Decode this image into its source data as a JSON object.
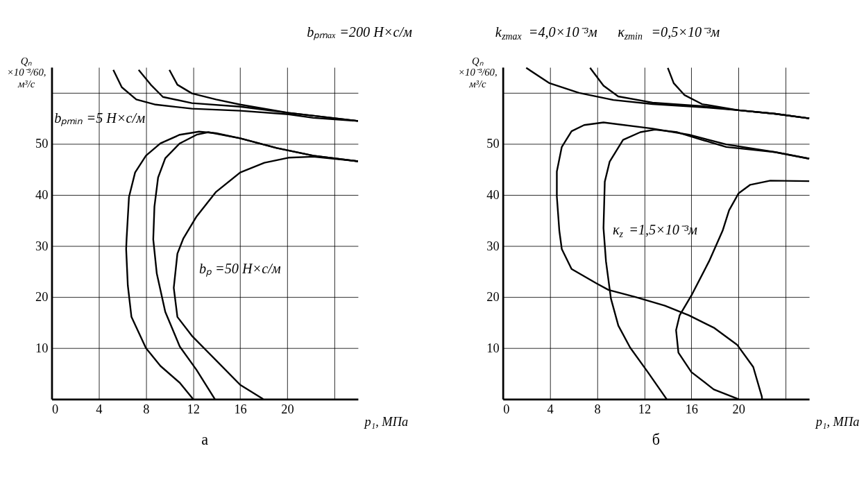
{
  "chart_data": [
    {
      "type": "line",
      "title": "а",
      "xlabel": "p₁, МПа",
      "ylabel": "Qₙ ×10⁻³/60, м³/с",
      "xlim": [
        0,
        26
      ],
      "ylim": [
        0,
        65
      ],
      "xticks": [
        0,
        4,
        8,
        12,
        16,
        20,
        {
          "value": 24,
          "label": null
        }
      ],
      "yticks": [
        10,
        20,
        30,
        40,
        50,
        {
          "value": 60,
          "label": null
        }
      ],
      "grid": true,
      "series": [
        {
          "color": "#000000",
          "x": [
            5.23,
            5.95,
            7.18,
            8.82,
            11.9,
            16.0,
            20.1,
            22.2,
            26.0
          ],
          "values": [
            64.5,
            61.1,
            58.7,
            57.7,
            56.9,
            56.5,
            55.8,
            55.1,
            54.5
          ]
        },
        {
          "color": "#000000",
          "x": [
            7.38,
            8.41,
            9.44,
            11.9,
            16.0,
            20.1,
            26.0
          ],
          "values": [
            64.5,
            61.6,
            59.2,
            58.0,
            57.3,
            56.1,
            54.5
          ]
        },
        {
          "color": "#000000",
          "x": [
            9.99,
            10.67,
            11.9,
            13.95,
            16.0,
            20.1,
            26.0
          ],
          "values": [
            64.5,
            61.6,
            59.9,
            58.7,
            57.7,
            56.1,
            54.5
          ]
        },
        {
          "color": "#000000",
          "x": [
            12.0,
            10.87,
            9.23,
            8.0,
            6.77,
            6.46,
            6.32,
            6.36,
            6.56,
            7.08,
            8.0,
            9.23,
            10.87,
            12.5,
            13.95,
            16.0,
            19.1,
            22.2,
            26.0
          ],
          "values": [
            0,
            3.2,
            6.5,
            10.0,
            16.1,
            22.3,
            29.4,
            31.5,
            39.6,
            44.4,
            47.7,
            50.1,
            51.8,
            52.4,
            52.1,
            51.1,
            49.2,
            47.7,
            46.6
          ]
        },
        {
          "color": "#000000",
          "x": [
            13.85,
            12.3,
            10.87,
            9.64,
            8.92,
            8.62,
            8.72,
            9.03,
            9.64,
            10.87,
            12.3,
            13.3,
            16.0,
            19.1,
            22.2,
            26.0
          ],
          "values": [
            0,
            5.7,
            10.3,
            17.1,
            24.6,
            31.3,
            37.7,
            43.4,
            47.2,
            50.1,
            51.8,
            52.3,
            51.1,
            49.2,
            47.7,
            46.6
          ]
        },
        {
          "color": "#000000",
          "x": [
            17.95,
            16.0,
            13.95,
            11.9,
            10.67,
            10.36,
            10.67,
            11.18,
            12.3,
            13.95,
            16.0,
            18.05,
            20.1,
            22.2,
            26.0
          ],
          "values": [
            0,
            2.8,
            7.6,
            12.4,
            16.1,
            21.8,
            28.5,
            31.5,
            35.8,
            40.6,
            44.4,
            46.3,
            47.3,
            47.5,
            46.6
          ]
        }
      ],
      "annotations": [
        "bₚₘₐₓ =200 Н×с/м",
        "bₚₘᵢₙ =5 Н×с/м",
        "bₚ =50 Н×с/м"
      ]
    },
    {
      "type": "line",
      "title": "б",
      "xlabel": "p₁, МПа",
      "ylabel": "Qₙ ×10⁻³/60, м³/с",
      "xlim": [
        0,
        26
      ],
      "ylim": [
        0,
        65
      ],
      "xticks": [
        0,
        4,
        8,
        12,
        16,
        20,
        {
          "value": 24,
          "label": null
        }
      ],
      "yticks": [
        10,
        20,
        30,
        40,
        50,
        {
          "value": 60,
          "label": null
        }
      ],
      "grid": true,
      "series": [
        {
          "color": "#000000",
          "x": [
            1.98,
            3.96,
            6.46,
            9.38,
            12.7,
            16.9,
            20.0,
            23.1,
            26.0
          ],
          "values": [
            64.9,
            61.9,
            60.0,
            58.6,
            57.8,
            57.2,
            56.6,
            55.9,
            55.0
          ]
        },
        {
          "color": "#000000",
          "x": [
            7.4,
            8.54,
            9.79,
            12.7,
            16.9,
            20.0,
            23.1,
            26.0
          ],
          "values": [
            64.9,
            61.4,
            59.3,
            58.1,
            57.4,
            56.6,
            55.9,
            55.0
          ]
        },
        {
          "color": "#000000",
          "x": [
            14.0,
            14.5,
            15.4,
            16.9,
            20.0,
            23.1,
            26.0
          ],
          "values": [
            64.9,
            61.9,
            59.6,
            57.8,
            56.6,
            55.9,
            55.0
          ]
        },
        {
          "color": "#000000",
          "x": [
            26.0,
            23.1,
            18.96,
            15.8,
            12.7,
            8.54,
            6.9,
            5.83,
            5.0,
            4.58,
            4.58,
            4.79,
            5.0,
            5.83,
            7.92,
            8.96,
            11.25,
            13.75,
            15.8,
            17.9,
            19.9,
            21.25,
            21.98,
            22.0
          ],
          "values": [
            47.1,
            48.4,
            49.9,
            51.8,
            53.0,
            54.2,
            53.7,
            52.5,
            49.4,
            44.6,
            39.7,
            33.0,
            29.4,
            25.5,
            22.7,
            21.4,
            20.0,
            18.3,
            16.4,
            14.0,
            10.6,
            6.3,
            0.5,
            0
          ]
        },
        {
          "color": "#000000",
          "x": [
            13.9,
            12.3,
            10.8,
            9.8,
            9.17,
            8.75,
            8.54,
            8.65,
            9.06,
            10.2,
            11.67,
            12.9,
            14.8,
            16.9,
            18.96,
            23.1,
            26.0
          ],
          "values": [
            0,
            5.3,
            10.1,
            14.4,
            19.7,
            27.0,
            33.5,
            42.6,
            46.5,
            50.8,
            52.3,
            52.8,
            52.3,
            50.8,
            49.4,
            48.4,
            47.1
          ]
        },
        {
          "color": "#000000",
          "x": [
            20.0,
            17.9,
            16.0,
            14.9,
            14.7,
            15.0,
            16.0,
            17.5,
            18.65,
            19.2,
            20.0,
            21.0,
            22.7,
            26.0
          ],
          "values": [
            0,
            1.9,
            5.3,
            9.1,
            13.5,
            16.4,
            20.3,
            27.0,
            33.0,
            37.0,
            40.3,
            42.0,
            42.8,
            42.7
          ]
        }
      ],
      "annotations": [
        "k$_{zmax}$ =4,0×10⁻³м",
        "κ$_{zmin}$ =0,5×10⁻³м",
        "κ$_{z}$ =1,5×10⁻³м"
      ]
    }
  ]
}
